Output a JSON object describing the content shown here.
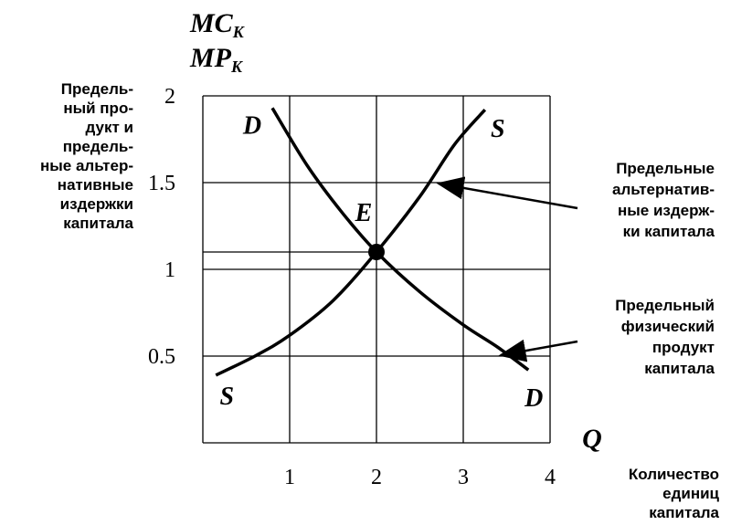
{
  "chart_data": {
    "type": "line",
    "y_axis_labels": [
      {
        "main": "MC",
        "sub": "K"
      },
      {
        "main": "MP",
        "sub": "K"
      }
    ],
    "y_axis_description": [
      "Предель-",
      "ный про-",
      "дукт и",
      "предель-",
      "ные альтер-",
      "нативные",
      "издержки",
      "капитала"
    ],
    "x_axis_label": "Q",
    "x_axis_description": [
      "Количество",
      "единиц",
      "капитала"
    ],
    "xlim": [
      0,
      4
    ],
    "xticks": [
      1,
      2,
      3,
      4
    ],
    "ylim": [
      0,
      2
    ],
    "yticks": [
      0.5,
      1,
      1.5,
      2
    ],
    "grid": true,
    "series": [
      {
        "name": "D",
        "color": "#000000",
        "x": [
          0.8,
          1.2,
          1.6,
          2,
          2.5,
          3,
          3.4,
          3.75
        ],
        "values": [
          1.93,
          1.6,
          1.33,
          1.1,
          0.87,
          0.68,
          0.55,
          0.42
        ],
        "annotation": [
          "Предельный",
          "физический",
          "продукт",
          "капитала"
        ]
      },
      {
        "name": "S",
        "color": "#000000",
        "x": [
          0.15,
          0.6,
          1,
          1.5,
          2,
          2.5,
          2.9,
          3.25
        ],
        "values": [
          0.39,
          0.5,
          0.62,
          0.82,
          1.1,
          1.42,
          1.72,
          1.92
        ],
        "annotation": [
          "Предельные",
          "альтернатив-",
          "ные издерж-",
          "ки капитала"
        ]
      }
    ],
    "point": {
      "label": "E",
      "x": 2,
      "y": 1.1
    }
  }
}
